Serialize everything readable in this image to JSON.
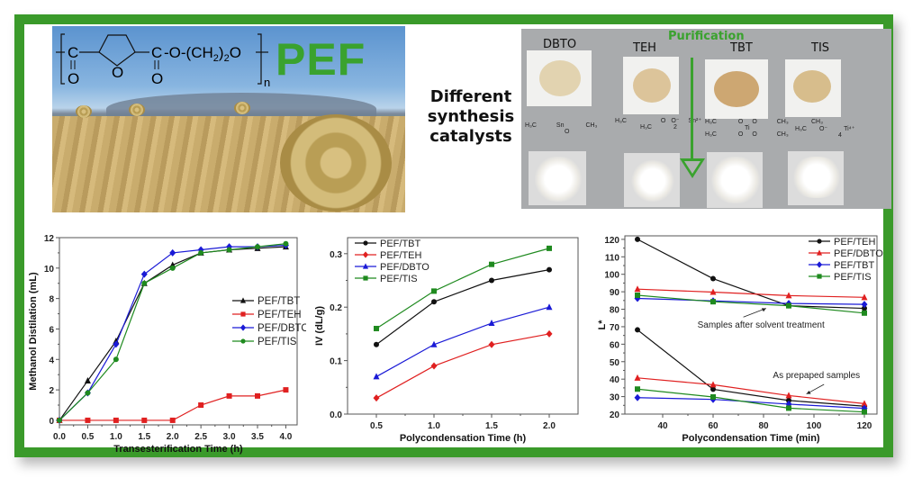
{
  "top_left": {
    "formula": "–[C(=O)–furan–C(=O)–O–(CH₂)₂O]ₙ–",
    "formula_parts": {
      "c1": "C",
      "o1": "O",
      "ring_o": "O",
      "c2": "C",
      "o2": "O",
      "chain": "-O-(CH",
      "sub2": "2",
      "close": ")",
      "sub2b": "2",
      "o_end": "O",
      "n": "n"
    },
    "pef_label": "PEF"
  },
  "center_text": [
    "Different",
    "synthesis",
    "catalysts"
  ],
  "top_right": {
    "purification_label": "Purification",
    "catalysts": [
      "DBTO",
      "TEH",
      "TBT",
      "TIS"
    ],
    "structure_labels": {
      "dbto": [
        "H₃C",
        "Sn",
        "O",
        "CH₃"
      ],
      "teh": [
        "H₃C",
        "O",
        "O⁻",
        "H₃C",
        "Sn²⁺",
        "2"
      ],
      "tbt": [
        "H₃C",
        "O",
        "Ti",
        "O",
        "CH₃",
        "H₃C",
        "O",
        "O",
        "CH₃"
      ],
      "tis": [
        "CH₃",
        "H₃C",
        "O⁻",
        "Ti⁴⁺",
        "4"
      ]
    },
    "colors": {
      "accent": "#3aa22e"
    }
  },
  "chart_data": [
    {
      "type": "line",
      "title": "",
      "xlabel": "Transesterification Time (h)",
      "ylabel": "Methanol Distilation (mL)",
      "xlim": [
        0.0,
        4.2
      ],
      "ylim": [
        -0.3,
        12
      ],
      "xticks": [
        "0.0",
        "0.5",
        "1.0",
        "1.5",
        "2.0",
        "2.5",
        "3.0",
        "3.5",
        "4.0"
      ],
      "yticks": [
        "0",
        "2",
        "4",
        "6",
        "8",
        "10",
        "12"
      ],
      "legend_position": "center-right",
      "grid": false,
      "x": [
        0.0,
        0.5,
        1.0,
        1.5,
        2.0,
        2.5,
        3.0,
        3.5,
        4.0
      ],
      "series": [
        {
          "name": "PEF/TBT",
          "color": "#111111",
          "marker": "triangle",
          "values": [
            0,
            2.6,
            5.2,
            9.0,
            10.2,
            11.0,
            11.2,
            11.3,
            11.4
          ]
        },
        {
          "name": "PEF/TEH",
          "color": "#e02020",
          "marker": "square",
          "values": [
            0,
            0,
            0,
            0,
            0,
            1.0,
            1.6,
            1.6,
            2.0
          ]
        },
        {
          "name": "PEF/DBTO",
          "color": "#1a1ad6",
          "marker": "diamond",
          "values": [
            0,
            1.8,
            5.0,
            9.6,
            11.0,
            11.2,
            11.4,
            11.4,
            11.5
          ]
        },
        {
          "name": "PEF/TIS",
          "color": "#1f8a1f",
          "marker": "circle",
          "values": [
            0,
            1.8,
            4.0,
            9.0,
            10.0,
            11.0,
            11.2,
            11.4,
            11.6
          ]
        }
      ]
    },
    {
      "type": "line",
      "title": "",
      "xlabel": "Polycondensation Time (h)",
      "ylabel": "IV (dL/g)",
      "xlim": [
        0.25,
        2.25
      ],
      "ylim": [
        0.0,
        0.33
      ],
      "xticks": [
        "0.5",
        "1.0",
        "1.5",
        "2.0"
      ],
      "yticks": [
        "0.0",
        "0.1",
        "0.2",
        "0.3"
      ],
      "legend_position": "top-left",
      "grid": false,
      "x": [
        0.5,
        1.0,
        1.5,
        2.0
      ],
      "series": [
        {
          "name": "PEF/TBT",
          "color": "#111111",
          "marker": "circle",
          "values": [
            0.13,
            0.21,
            0.25,
            0.27
          ]
        },
        {
          "name": "PEF/TEH",
          "color": "#e02020",
          "marker": "diamond",
          "values": [
            0.03,
            0.09,
            0.13,
            0.15
          ]
        },
        {
          "name": "PEF/DBTO",
          "color": "#1a1ad6",
          "marker": "triangle",
          "values": [
            0.07,
            0.13,
            0.17,
            0.2
          ]
        },
        {
          "name": "PEF/TIS",
          "color": "#1f8a1f",
          "marker": "square",
          "values": [
            0.16,
            0.23,
            0.28,
            0.31
          ]
        }
      ]
    },
    {
      "type": "line",
      "title": "",
      "xlabel": "Polycondensation Time (min)",
      "ylabel": "L*",
      "xlim": [
        25,
        125
      ],
      "ylim": [
        20,
        122
      ],
      "xticks": [
        "40",
        "60",
        "80",
        "100",
        "120"
      ],
      "yticks": [
        "20",
        "30",
        "40",
        "50",
        "60",
        "70",
        "80",
        "90",
        "100",
        "110",
        "120"
      ],
      "legend_position": "top-right",
      "grid": false,
      "x": [
        30,
        60,
        90,
        120
      ],
      "annotations": [
        "Samples after solvent treatment",
        "As prepaped samples"
      ],
      "series": [
        {
          "name": "PEF/TEH",
          "color": "#111111",
          "marker": "circle",
          "values": [
            120,
            97.5,
            82,
            80.5
          ]
        },
        {
          "name": "PEF/DBTO",
          "color": "#e02020",
          "marker": "triangle",
          "values": [
            91.5,
            89.8,
            87.8,
            86.8
          ]
        },
        {
          "name": "PEF/TBT",
          "color": "#1a1ad6",
          "marker": "diamond",
          "values": [
            86.2,
            84.8,
            83.3,
            82.8
          ]
        },
        {
          "name": "PEF/TIS",
          "color": "#1f8a1f",
          "marker": "square",
          "values": [
            88.0,
            84.3,
            82.0,
            77.8
          ]
        }
      ],
      "series_as_prepared": [
        {
          "name": "PEF/TEH",
          "color": "#111111",
          "marker": "circle",
          "values": [
            68.2,
            34.2,
            27.8,
            24.5
          ]
        },
        {
          "name": "PEF/DBTO",
          "color": "#e02020",
          "marker": "triangle",
          "values": [
            40.7,
            36.8,
            30.6,
            26.0
          ]
        },
        {
          "name": "PEF/TBT",
          "color": "#1a1ad6",
          "marker": "diamond",
          "values": [
            29.4,
            28.4,
            25.7,
            23.3
          ]
        },
        {
          "name": "PEF/TIS",
          "color": "#1f8a1f",
          "marker": "square",
          "values": [
            34.3,
            29.8,
            23.4,
            21.2
          ]
        }
      ]
    }
  ]
}
